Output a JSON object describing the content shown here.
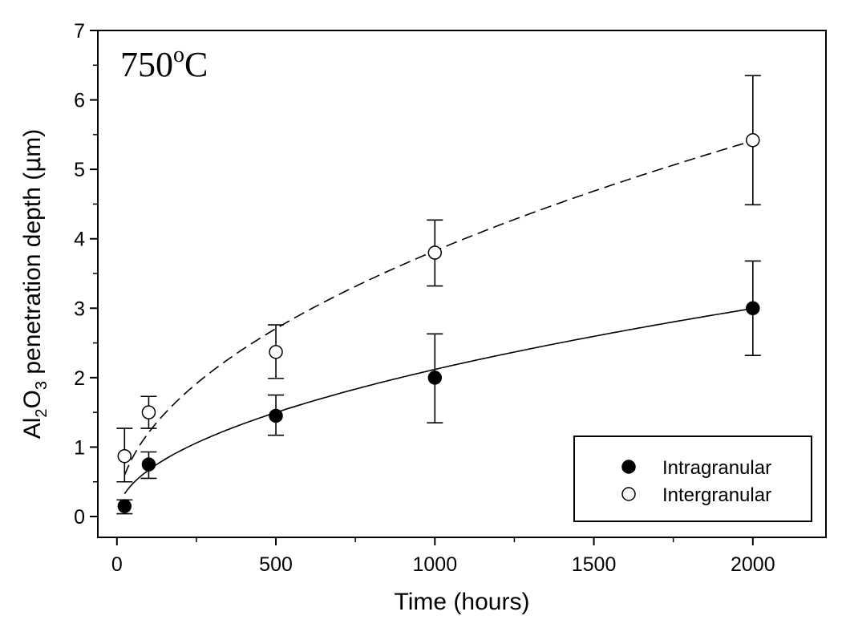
{
  "chart_data": {
    "type": "scatter",
    "annotation": {
      "main": "750",
      "sup": "o",
      "unit": "C"
    },
    "xlabel": "Time (hours)",
    "ylabel": {
      "pre": "Al",
      "sub1": "2",
      "mid": "O",
      "sub2": "3",
      "post": " penetration depth (",
      "mu": "μ",
      "end": "m)"
    },
    "xlim": [
      -60,
      2230
    ],
    "ylim": [
      -0.3,
      7
    ],
    "xticks": [
      0,
      500,
      1000,
      1500,
      2000
    ],
    "yticks": [
      0,
      1,
      2,
      3,
      4,
      5,
      6,
      7
    ],
    "legend_position": "bottom-right",
    "series": [
      {
        "name": "Intragranular",
        "marker": "filled-circle",
        "line_style": "solid",
        "x": [
          24,
          100,
          500,
          1000,
          2000
        ],
        "y": [
          0.15,
          0.75,
          1.45,
          2.0,
          3.0
        ],
        "err_low": [
          0.04,
          0.55,
          1.17,
          1.35,
          2.32
        ],
        "err_high": [
          0.24,
          0.93,
          1.75,
          2.63,
          3.68
        ],
        "fit": {
          "coef": 0.067,
          "exponent": 0.5
        }
      },
      {
        "name": "Intergranular",
        "marker": "open-circle",
        "line_style": "dashed",
        "x": [
          24,
          100,
          500,
          1000,
          2000
        ],
        "y": [
          0.87,
          1.5,
          2.37,
          3.8,
          5.42
        ],
        "err_low": [
          0.5,
          1.27,
          1.99,
          3.32,
          4.49
        ],
        "err_high": [
          1.27,
          1.73,
          2.76,
          4.27,
          6.35
        ],
        "fit": {
          "coef": 0.121,
          "exponent": 0.5
        }
      }
    ]
  }
}
